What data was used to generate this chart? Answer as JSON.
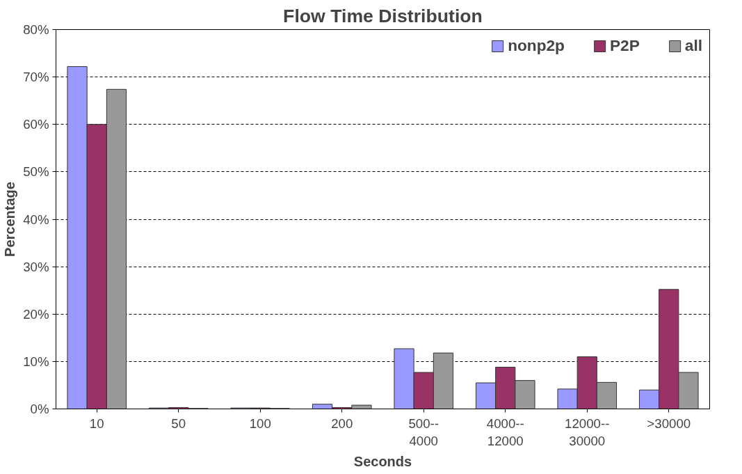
{
  "chart_data": {
    "type": "bar",
    "title": "Flow Time Distribution",
    "xlabel": "Seconds",
    "ylabel": "Percentage",
    "categories": [
      "10",
      "50",
      "100",
      "200",
      "500--\n4000",
      "4000--\n12000",
      "12000--\n30000",
      ">30000"
    ],
    "series": [
      {
        "name": "nonp2p",
        "color": "#9999ff",
        "values": [
          72.2,
          0.2,
          0.2,
          1.0,
          12.7,
          5.5,
          4.2,
          4.0
        ]
      },
      {
        "name": "P2P",
        "color": "#993366",
        "values": [
          60.0,
          0.3,
          0.2,
          0.3,
          7.7,
          8.8,
          11.0,
          25.2
        ]
      },
      {
        "name": "all",
        "color": "#999999",
        "values": [
          67.4,
          0.1,
          0.1,
          0.8,
          11.8,
          6.0,
          5.6,
          7.7
        ]
      }
    ],
    "ylim": [
      0,
      80
    ],
    "yticks": [
      {
        "value": 0,
        "label": "0%"
      },
      {
        "value": 10,
        "label": "10%"
      },
      {
        "value": 20,
        "label": "20%"
      },
      {
        "value": 30,
        "label": "30%"
      },
      {
        "value": 40,
        "label": "40%"
      },
      {
        "value": 50,
        "label": "50%"
      },
      {
        "value": 60,
        "label": "60%"
      },
      {
        "value": 70,
        "label": "70%"
      },
      {
        "value": 80,
        "label": "80%"
      }
    ],
    "grid": "y",
    "legend": "top right"
  }
}
